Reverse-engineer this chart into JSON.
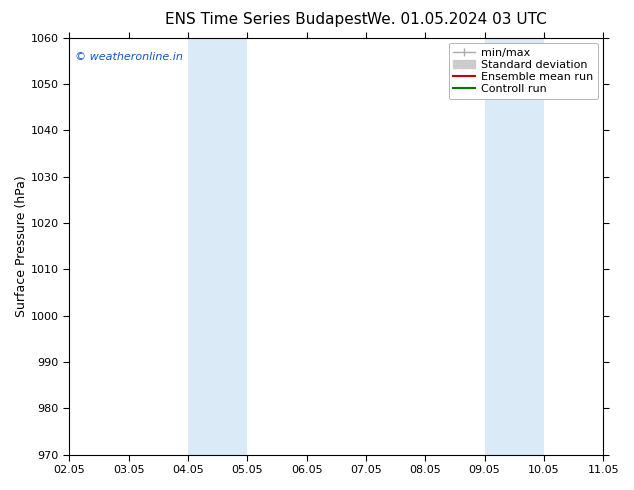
{
  "title_left": "ENS Time Series Budapest",
  "title_right": "We. 01.05.2024 03 UTC",
  "ylabel": "Surface Pressure (hPa)",
  "ylim": [
    970,
    1060
  ],
  "yticks": [
    970,
    980,
    990,
    1000,
    1010,
    1020,
    1030,
    1040,
    1050,
    1060
  ],
  "xlim": [
    0,
    9
  ],
  "xtick_labels": [
    "02.05",
    "03.05",
    "04.05",
    "05.05",
    "06.05",
    "07.05",
    "08.05",
    "09.05",
    "10.05",
    "11.05"
  ],
  "xtick_positions": [
    0,
    1,
    2,
    3,
    4,
    5,
    6,
    7,
    8,
    9
  ],
  "shaded_bands": [
    {
      "x_start": 2,
      "x_end": 3,
      "color": "#daeaf7"
    },
    {
      "x_start": 7,
      "x_end": 8,
      "color": "#daeaf7"
    }
  ],
  "watermark": "© weatheronline.in",
  "watermark_color": "#1155cc",
  "legend_entries": [
    {
      "label": "min/max",
      "color": "#aaaaaa",
      "lw": 1.0
    },
    {
      "label": "Standard deviation",
      "color": "#cccccc",
      "lw": 6
    },
    {
      "label": "Ensemble mean run",
      "color": "#cc0000",
      "lw": 1.5
    },
    {
      "label": "Controll run",
      "color": "#007700",
      "lw": 1.5
    }
  ],
  "background_color": "#ffffff",
  "font_size_title": 11,
  "font_size_ticks": 8,
  "font_size_ylabel": 9,
  "font_size_legend": 8,
  "font_size_watermark": 8
}
